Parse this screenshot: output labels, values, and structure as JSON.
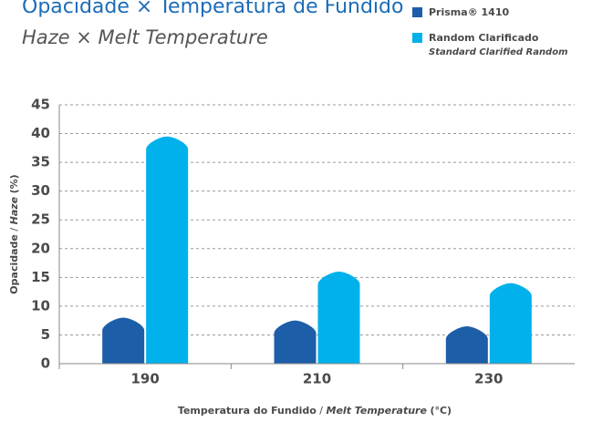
{
  "chart_data": {
    "type": "bar",
    "title": "Opacidade × Temperatura de Fundido",
    "subtitle": "Haze × Melt Temperature",
    "categories": [
      "190",
      "210",
      "230"
    ],
    "series": [
      {
        "name": "Prisma® 1410",
        "color": "#1c5ea8",
        "values": [
          8,
          7.5,
          6.5
        ]
      },
      {
        "name": "Random Clarificado",
        "subname": "Standard Clarified Random",
        "color": "#00b1eb",
        "values": [
          39.5,
          16,
          14
        ]
      }
    ],
    "ylim": [
      0,
      45
    ],
    "yticks": [
      0,
      5,
      10,
      15,
      20,
      25,
      30,
      35,
      40,
      45
    ],
    "grid": true,
    "ylabel": [
      "Opacidade",
      "/",
      "Haze",
      "(%)"
    ],
    "xlabel": [
      "Temperatura do Fundido",
      "/",
      "Melt Temperature",
      "(°C)"
    ]
  }
}
